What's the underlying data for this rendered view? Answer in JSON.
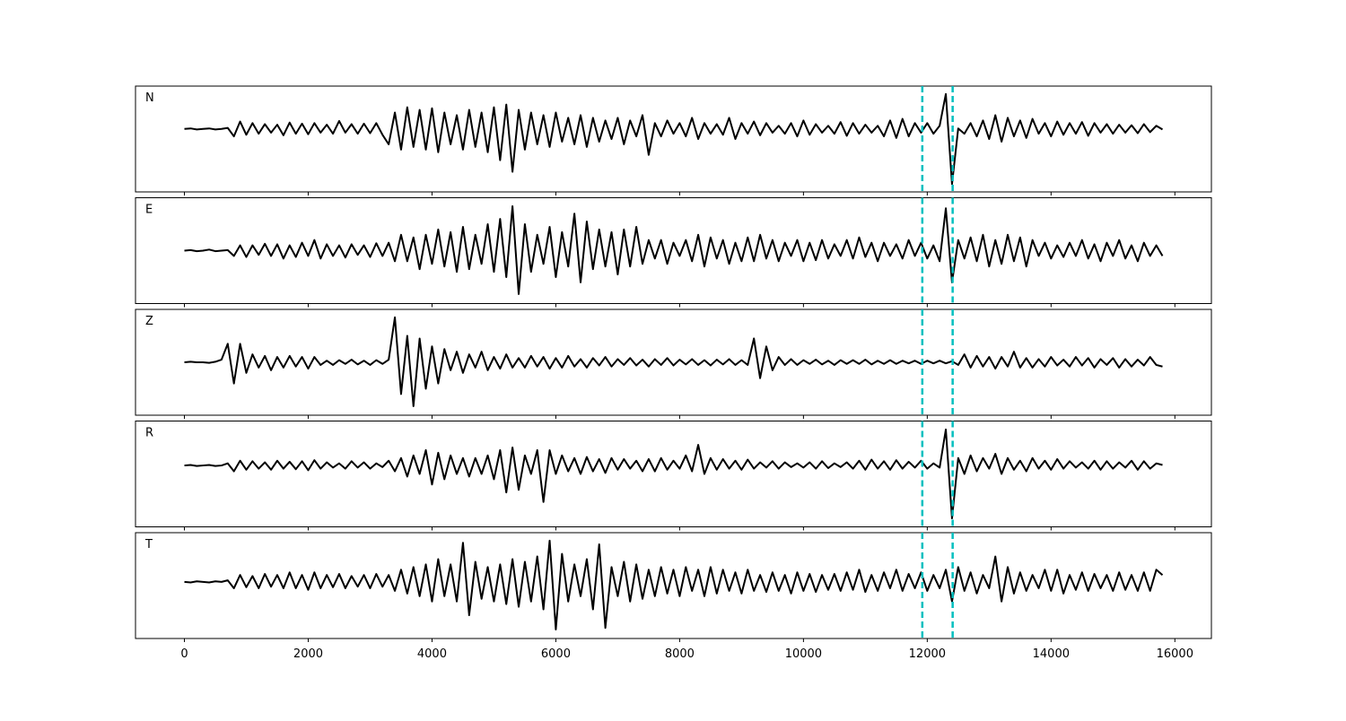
{
  "chart_data": {
    "type": "line",
    "x": [
      0,
      100,
      200,
      300,
      400,
      500,
      600,
      700,
      800,
      900,
      1000,
      1100,
      1200,
      1300,
      1400,
      1500,
      1600,
      1700,
      1800,
      1900,
      2000,
      2100,
      2200,
      2300,
      2400,
      2500,
      2600,
      2700,
      2800,
      2900,
      3000,
      3100,
      3200,
      3300,
      3400,
      3500,
      3600,
      3700,
      3800,
      3900,
      4000,
      4100,
      4200,
      4300,
      4400,
      4500,
      4600,
      4700,
      4800,
      4900,
      5000,
      5100,
      5200,
      5300,
      5400,
      5500,
      5600,
      5700,
      5800,
      5900,
      6000,
      6100,
      6200,
      6300,
      6400,
      6500,
      6600,
      6700,
      6800,
      6900,
      7000,
      7100,
      7200,
      7300,
      7400,
      7500,
      7600,
      7700,
      7800,
      7900,
      8000,
      8100,
      8200,
      8300,
      8400,
      8500,
      8600,
      8700,
      8800,
      8900,
      9000,
      9100,
      9200,
      9300,
      9400,
      9500,
      9600,
      9700,
      9800,
      9900,
      10000,
      10100,
      10200,
      10300,
      10400,
      10500,
      10600,
      10700,
      10800,
      10900,
      11000,
      11100,
      11200,
      11300,
      11400,
      11500,
      11600,
      11700,
      11800,
      11900,
      12000,
      12100,
      12200,
      12300,
      12400,
      12500,
      12600,
      12700,
      12800,
      12900,
      13000,
      13100,
      13200,
      13300,
      13400,
      13500,
      13600,
      13700,
      13800,
      13900,
      14000,
      14100,
      14200,
      14300,
      14400,
      14500,
      14600,
      14700,
      14800,
      14900,
      15000,
      15100,
      15200,
      15300,
      15400,
      15500,
      15600,
      15700,
      15800
    ],
    "xlim": [
      -790,
      16590
    ],
    "xticks": [
      0,
      2000,
      4000,
      6000,
      8000,
      10000,
      12000,
      14000,
      16000
    ],
    "ylim": [
      -1,
      1
    ],
    "series": [
      {
        "name": "N",
        "color": "#000000",
        "values": [
          0.19,
          0.2,
          0.18,
          0.19,
          0.2,
          0.18,
          0.19,
          0.21,
          0.05,
          0.33,
          0.08,
          0.3,
          0.1,
          0.28,
          0.12,
          0.27,
          0.07,
          0.31,
          0.1,
          0.29,
          0.09,
          0.3,
          0.12,
          0.27,
          0.1,
          0.34,
          0.12,
          0.28,
          0.1,
          0.29,
          0.11,
          0.3,
          0.08,
          -0.1,
          0.5,
          -0.2,
          0.6,
          -0.15,
          0.55,
          -0.2,
          0.58,
          -0.25,
          0.5,
          -0.1,
          0.45,
          -0.2,
          0.55,
          -0.15,
          0.5,
          -0.25,
          0.6,
          -0.4,
          0.65,
          -0.62,
          0.55,
          -0.2,
          0.5,
          -0.1,
          0.45,
          -0.15,
          0.5,
          -0.05,
          0.4,
          -0.1,
          0.45,
          -0.15,
          0.4,
          -0.05,
          0.35,
          0,
          0.4,
          -0.1,
          0.35,
          0.05,
          0.45,
          -0.3,
          0.3,
          0.05,
          0.35,
          0.1,
          0.3,
          0.05,
          0.4,
          0.0,
          0.3,
          0.1,
          0.28,
          0.08,
          0.4,
          0.0,
          0.3,
          0.1,
          0.33,
          0.07,
          0.3,
          0.12,
          0.25,
          0.1,
          0.3,
          0.05,
          0.35,
          0.08,
          0.28,
          0.12,
          0.25,
          0.1,
          0.32,
          0.06,
          0.3,
          0.1,
          0.27,
          0.12,
          0.25,
          0.05,
          0.35,
          0.02,
          0.38,
          0.05,
          0.3,
          0.12,
          0.3,
          0.1,
          0.25,
          0.85,
          -0.85,
          0.2,
          0.1,
          0.3,
          0.05,
          0.35,
          0.0,
          0.45,
          -0.05,
          0.4,
          0.05,
          0.35,
          0.02,
          0.38,
          0.1,
          0.3,
          0.05,
          0.33,
          0.08,
          0.3,
          0.1,
          0.32,
          0.06,
          0.3,
          0.12,
          0.28,
          0.1,
          0.27,
          0.12,
          0.26,
          0.11,
          0.28,
          0.13,
          0.25,
          0.18
        ]
      },
      {
        "name": "E",
        "color": "#000000",
        "values": [
          0,
          0.01,
          -0.01,
          0,
          0.02,
          -0.01,
          0,
          0.01,
          -0.1,
          0.1,
          -0.12,
          0.1,
          -0.08,
          0.13,
          -0.1,
          0.12,
          -0.15,
          0.1,
          -0.12,
          0.15,
          -0.1,
          0.2,
          -0.15,
          0.12,
          -0.1,
          0.1,
          -0.13,
          0.12,
          -0.08,
          0.1,
          -0.12,
          0.14,
          -0.1,
          0.15,
          -0.2,
          0.3,
          -0.2,
          0.25,
          -0.35,
          0.3,
          -0.25,
          0.4,
          -0.3,
          0.35,
          -0.4,
          0.45,
          -0.35,
          0.3,
          -0.25,
          0.5,
          -0.4,
          0.6,
          -0.5,
          0.84,
          -0.82,
          0.5,
          -0.4,
          0.3,
          -0.25,
          0.45,
          -0.5,
          0.35,
          -0.3,
          0.7,
          -0.6,
          0.55,
          -0.35,
          0.4,
          -0.3,
          0.35,
          -0.45,
          0.4,
          -0.3,
          0.45,
          -0.25,
          0.2,
          -0.15,
          0.2,
          -0.25,
          0.15,
          -0.1,
          0.2,
          -0.2,
          0.3,
          -0.3,
          0.25,
          -0.15,
          0.2,
          -0.25,
          0.15,
          -0.2,
          0.25,
          -0.2,
          0.3,
          -0.15,
          0.2,
          -0.2,
          0.15,
          -0.1,
          0.2,
          -0.2,
          0.15,
          -0.18,
          0.2,
          -0.15,
          0.12,
          -0.1,
          0.2,
          -0.15,
          0.25,
          -0.12,
          0.15,
          -0.2,
          0.15,
          -0.1,
          0.12,
          -0.15,
          0.2,
          -0.1,
          0.15,
          -0.15,
          0.1,
          -0.2,
          0.8,
          -0.6,
          0.2,
          -0.15,
          0.25,
          -0.2,
          0.3,
          -0.3,
          0.2,
          -0.25,
          0.3,
          -0.2,
          0.25,
          -0.3,
          0.2,
          -0.1,
          0.15,
          -0.15,
          0.1,
          -0.12,
          0.15,
          -0.1,
          0.2,
          -0.15,
          0.12,
          -0.2,
          0.15,
          -0.1,
          0.2,
          -0.15,
          0.1,
          -0.2,
          0.15,
          -0.1,
          0.1,
          -0.1
        ]
      },
      {
        "name": "Z",
        "color": "#000000",
        "values": [
          0,
          0.01,
          0,
          0,
          -0.01,
          0.01,
          0.05,
          0.35,
          -0.4,
          0.35,
          -0.2,
          0.15,
          -0.1,
          0.12,
          -0.15,
          0.1,
          -0.1,
          0.12,
          -0.08,
          0.1,
          -0.12,
          0.1,
          -0.05,
          0.03,
          -0.05,
          0.04,
          -0.03,
          0.05,
          -0.04,
          0.03,
          -0.05,
          0.04,
          -0.03,
          0.05,
          0.85,
          -0.6,
          0.5,
          -0.83,
          0.45,
          -0.5,
          0.3,
          -0.4,
          0.25,
          -0.15,
          0.2,
          -0.2,
          0.15,
          -0.1,
          0.2,
          -0.15,
          0.1,
          -0.12,
          0.15,
          -0.1,
          0.08,
          -0.1,
          0.12,
          -0.08,
          0.1,
          -0.12,
          0.08,
          -0.1,
          0.12,
          -0.08,
          0.06,
          -0.1,
          0.08,
          -0.06,
          0.1,
          -0.08,
          0.06,
          -0.05,
          0.08,
          -0.06,
          0.05,
          -0.08,
          0.06,
          -0.05,
          0.08,
          -0.06,
          0.05,
          -0.04,
          0.06,
          -0.05,
          0.04,
          -0.06,
          0.05,
          -0.04,
          0.06,
          -0.05,
          0.04,
          -0.05,
          0.45,
          -0.3,
          0.3,
          -0.15,
          0.1,
          -0.05,
          0.06,
          -0.05,
          0.04,
          -0.03,
          0.05,
          -0.04,
          0.03,
          -0.05,
          0.04,
          -0.03,
          0.04,
          -0.03,
          0.05,
          -0.04,
          0.03,
          -0.03,
          0.04,
          -0.03,
          0.03,
          -0.02,
          0.03,
          -0.03,
          0.03,
          -0.02,
          0.03,
          -0.02,
          0.02,
          -0.05,
          0.15,
          -0.1,
          0.12,
          -0.08,
          0.1,
          -0.12,
          0.1,
          -0.08,
          0.2,
          -0.1,
          0.08,
          -0.1,
          0.06,
          -0.08,
          0.1,
          -0.06,
          0.05,
          -0.08,
          0.1,
          -0.06,
          0.08,
          -0.1,
          0.06,
          -0.05,
          0.08,
          -0.1,
          0.06,
          -0.08,
          0.05,
          -0.06,
          0.1,
          -0.05,
          -0.08
        ]
      },
      {
        "name": "R",
        "color": "#000000",
        "values": [
          0.16,
          0.17,
          0.15,
          0.16,
          0.17,
          0.15,
          0.16,
          0.2,
          0.05,
          0.25,
          0.08,
          0.24,
          0.1,
          0.22,
          0.08,
          0.25,
          0.1,
          0.23,
          0.09,
          0.24,
          0.07,
          0.26,
          0.1,
          0.22,
          0.12,
          0.2,
          0.1,
          0.24,
          0.12,
          0.22,
          0.1,
          0.2,
          0.13,
          0.25,
          0.05,
          0.3,
          -0.05,
          0.35,
          0.0,
          0.45,
          -0.2,
          0.4,
          -0.1,
          0.35,
          0.0,
          0.3,
          -0.05,
          0.3,
          0.0,
          0.35,
          -0.1,
          0.45,
          -0.35,
          0.5,
          -0.3,
          0.35,
          0.0,
          0.45,
          -0.53,
          0.45,
          0.0,
          0.35,
          0.05,
          0.3,
          0.0,
          0.32,
          0.05,
          0.28,
          0.02,
          0.3,
          0.08,
          0.28,
          0.1,
          0.25,
          0.05,
          0.28,
          0.05,
          0.3,
          0.08,
          0.25,
          0.1,
          0.35,
          0.05,
          0.55,
          0.0,
          0.3,
          0.08,
          0.28,
          0.1,
          0.25,
          0.08,
          0.27,
          0.1,
          0.22,
          0.12,
          0.24,
          0.1,
          0.22,
          0.13,
          0.2,
          0.12,
          0.22,
          0.1,
          0.24,
          0.11,
          0.2,
          0.13,
          0.22,
          0.1,
          0.25,
          0.08,
          0.27,
          0.1,
          0.24,
          0.08,
          0.26,
          0.1,
          0.23,
          0.12,
          0.25,
          0.1,
          0.2,
          0.12,
          0.84,
          -0.84,
          0.3,
          0.0,
          0.35,
          0.05,
          0.3,
          0.1,
          0.38,
          0.0,
          0.3,
          0.08,
          0.25,
          0.05,
          0.3,
          0.1,
          0.25,
          0.08,
          0.28,
          0.1,
          0.24,
          0.12,
          0.22,
          0.1,
          0.25,
          0.08,
          0.24,
          0.1,
          0.22,
          0.12,
          0.25,
          0.08,
          0.24,
          0.1,
          0.2,
          0.17
        ]
      },
      {
        "name": "T",
        "color": "#000000",
        "values": [
          0.07,
          0.06,
          0.08,
          0.07,
          0.06,
          0.08,
          0.07,
          0.1,
          -0.05,
          0.2,
          -0.03,
          0.18,
          -0.05,
          0.22,
          -0.02,
          0.2,
          -0.05,
          0.25,
          -0.05,
          0.2,
          -0.08,
          0.25,
          -0.05,
          0.2,
          -0.03,
          0.22,
          -0.05,
          0.18,
          -0.02,
          0.2,
          -0.05,
          0.22,
          -0.02,
          0.2,
          -0.1,
          0.3,
          -0.15,
          0.35,
          -0.2,
          0.4,
          -0.3,
          0.5,
          -0.2,
          0.4,
          -0.3,
          0.81,
          -0.56,
          0.45,
          -0.25,
          0.35,
          -0.3,
          0.4,
          -0.35,
          0.5,
          -0.4,
          0.45,
          -0.3,
          0.55,
          -0.45,
          0.85,
          -0.83,
          0.6,
          -0.3,
          0.4,
          -0.2,
          0.5,
          -0.45,
          0.78,
          -0.8,
          0.35,
          -0.2,
          0.45,
          -0.3,
          0.4,
          -0.25,
          0.3,
          -0.2,
          0.35,
          -0.15,
          0.3,
          -0.2,
          0.35,
          -0.1,
          0.3,
          -0.2,
          0.35,
          -0.15,
          0.3,
          -0.1,
          0.25,
          -0.15,
          0.3,
          -0.1,
          0.2,
          -0.12,
          0.25,
          -0.1,
          0.2,
          -0.15,
          0.25,
          -0.1,
          0.22,
          -0.12,
          0.2,
          -0.08,
          0.22,
          -0.1,
          0.25,
          -0.08,
          0.3,
          -0.12,
          0.2,
          -0.1,
          0.25,
          -0.05,
          0.3,
          -0.1,
          0.22,
          -0.05,
          0.25,
          -0.1,
          0.2,
          -0.05,
          0.3,
          -0.3,
          0.35,
          -0.1,
          0.25,
          -0.15,
          0.2,
          -0.05,
          0.55,
          -0.3,
          0.35,
          -0.15,
          0.25,
          -0.1,
          0.2,
          -0.05,
          0.3,
          -0.1,
          0.3,
          -0.15,
          0.2,
          -0.08,
          0.25,
          -0.1,
          0.22,
          -0.05,
          0.2,
          -0.1,
          0.25,
          -0.08,
          0.2,
          -0.1,
          0.25,
          -0.1,
          0.3,
          0.2
        ]
      }
    ],
    "vlines": {
      "x": [
        11920,
        12410
      ],
      "color": "#00bfbf",
      "style": "dashed"
    }
  }
}
